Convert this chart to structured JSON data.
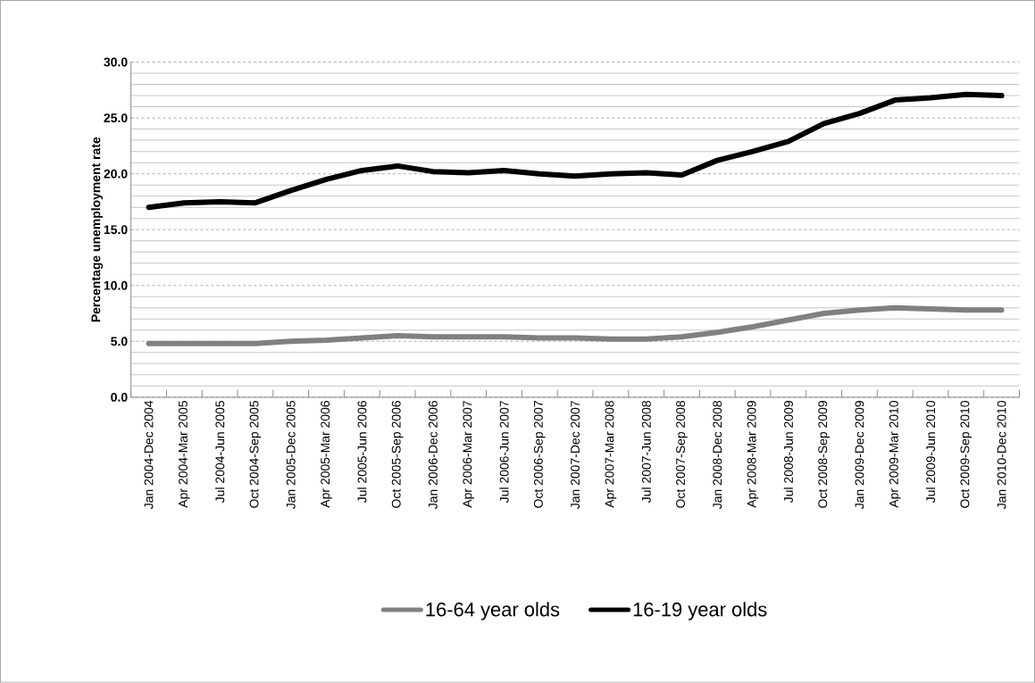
{
  "chart_data": {
    "type": "line",
    "ylabel": "Percentage unemployment rate",
    "categories": [
      "Jan 2004-Dec 2004",
      "Apr 2004-Mar 2005",
      "Jul 2004-Jun 2005",
      "Oct 2004-Sep 2005",
      "Jan 2005-Dec 2005",
      "Apr 2005-Mar 2006",
      "Jul 2005-Jun 2006",
      "Oct 2005-Sep 2006",
      "Jan 2006-Dec 2006",
      "Apr 2006-Mar 2007",
      "Jul 2006-Jun 2007",
      "Oct 2006-Sep 2007",
      "Jan 2007-Dec 2007",
      "Apr 2007-Mar 2008",
      "Jul 2007-Jun 2008",
      "Oct 2007-Sep 2008",
      "Jan 2008-Dec 2008",
      "Apr 2008-Mar 2009",
      "Jul 2008-Jun 2009",
      "Oct 2008-Sep 2009",
      "Jan 2009-Dec 2009",
      "Apr 2009-Mar 2010",
      "Jul 2009-Jun 2010",
      "Oct 2009-Sep 2010",
      "Jan 2010-Dec 2010"
    ],
    "series": [
      {
        "name": "16-64 year olds",
        "color": "#808080",
        "values": [
          4.8,
          4.8,
          4.8,
          4.8,
          5.0,
          5.1,
          5.3,
          5.5,
          5.4,
          5.4,
          5.4,
          5.3,
          5.3,
          5.2,
          5.2,
          5.4,
          5.8,
          6.3,
          6.9,
          7.5,
          7.8,
          8.0,
          7.9,
          7.8,
          7.8
        ]
      },
      {
        "name": "16-19 year olds",
        "color": "#000000",
        "values": [
          17.0,
          17.4,
          17.5,
          17.4,
          18.5,
          19.5,
          20.3,
          20.7,
          20.2,
          20.1,
          20.3,
          20.0,
          19.8,
          20.0,
          20.1,
          19.9,
          21.2,
          22.0,
          22.9,
          24.5,
          25.4,
          26.6,
          26.8,
          27.1,
          27.0
        ]
      }
    ],
    "ylim": [
      0,
      30
    ],
    "yticks": [
      {
        "value": 0,
        "label": "0.0"
      },
      {
        "value": 5,
        "label": "5.0"
      },
      {
        "value": 10,
        "label": "10.0"
      },
      {
        "value": 15,
        "label": "15.0"
      },
      {
        "value": 20,
        "label": "20.0"
      },
      {
        "value": 25,
        "label": "25.0"
      },
      {
        "value": 30,
        "label": "30.0"
      }
    ],
    "grid": "y",
    "legend": "bottom",
    "marker": "none",
    "line_style": "solid"
  }
}
